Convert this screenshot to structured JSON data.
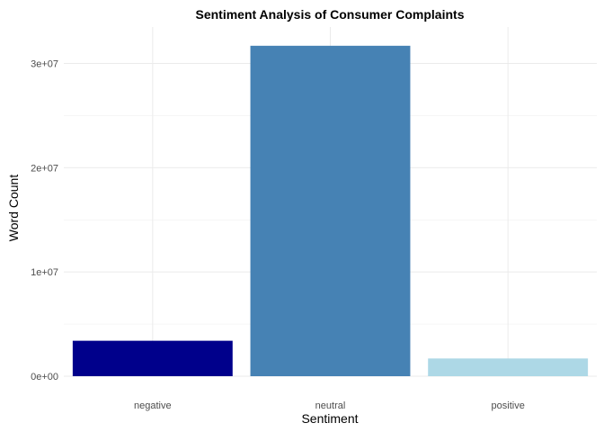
{
  "chart_data": {
    "type": "bar",
    "title": "Sentiment Analysis of Consumer Complaints",
    "xlabel": "Sentiment",
    "ylabel": "Word Count",
    "categories": [
      "negative",
      "neutral",
      "positive"
    ],
    "values": [
      3400000,
      31700000,
      1700000
    ],
    "colors": [
      "#00008B",
      "#4682B4",
      "#ADD8E6"
    ],
    "ylim": [
      0,
      33500000
    ],
    "yticks": [
      {
        "value": 0,
        "label": "0e+00"
      },
      {
        "value": 10000000,
        "label": "1e+07"
      },
      {
        "value": 20000000,
        "label": "2e+07"
      },
      {
        "value": 30000000,
        "label": "3e+07"
      }
    ],
    "grid": true,
    "legend": "none"
  }
}
